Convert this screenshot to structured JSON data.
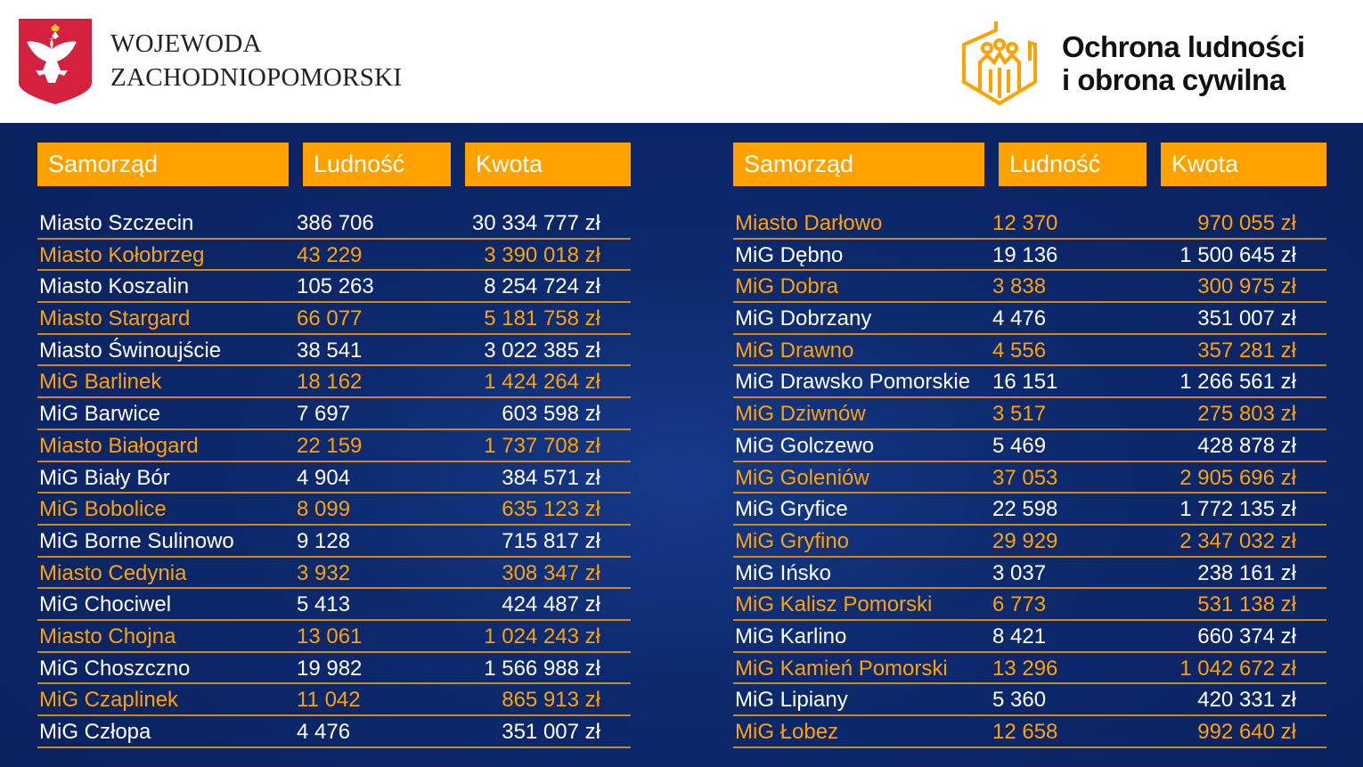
{
  "header": {
    "authority_line1": "WOJEWODA",
    "authority_line2": "ZACHODNIOPOMORSKI",
    "program_line1": "Ochrona ludności",
    "program_line2": "i obrona cywilna"
  },
  "colors": {
    "accent": "#ffa200",
    "background": "#0d2a6e",
    "text": "#ffffff"
  },
  "columns": [
    "Samorząd",
    "Ludność",
    "Kwota"
  ],
  "left_table": [
    [
      "Miasto Szczecin",
      "386 706",
      "30 334 777 zł"
    ],
    [
      "Miasto Kołobrzeg",
      "43 229",
      "3 390 018 zł"
    ],
    [
      "Miasto Koszalin",
      "105 263",
      "8 254 724 zł"
    ],
    [
      "Miasto Stargard",
      "66 077",
      "5 181 758 zł"
    ],
    [
      "Miasto Świnoujście",
      "38 541",
      "3 022 385 zł"
    ],
    [
      "MiG Barlinek",
      "18 162",
      "1 424 264 zł"
    ],
    [
      "MiG Barwice",
      "7 697",
      "603 598 zł"
    ],
    [
      "Miasto Białogard",
      "22 159",
      "1 737 708 zł"
    ],
    [
      "MiG Biały Bór",
      "4 904",
      "384 571 zł"
    ],
    [
      "MiG Bobolice",
      "8 099",
      "635 123 zł"
    ],
    [
      "MiG Borne Sulinowo",
      "9 128",
      "715 817 zł"
    ],
    [
      "Miasto Cedynia",
      "3 932",
      "308 347 zł"
    ],
    [
      "MiG Chociwel",
      "5 413",
      "424 487 zł"
    ],
    [
      "Miasto Chojna",
      "13 061",
      "1 024 243 zł"
    ],
    [
      "MiG Choszczno",
      "19 982",
      "1 566 988 zł"
    ],
    [
      "MiG Czaplinek",
      "11 042",
      "865 913 zł"
    ],
    [
      "MiG Człopa",
      "4 476",
      "351 007 zł"
    ]
  ],
  "right_table": [
    [
      "Miasto Darłowo",
      "12 370",
      "970 055 zł"
    ],
    [
      "MiG Dębno",
      "19 136",
      "1 500 645 zł"
    ],
    [
      "MiG Dobra",
      "3 838",
      "300 975 zł"
    ],
    [
      "MiG Dobrzany",
      "4 476",
      "351 007 zł"
    ],
    [
      "MiG Drawno",
      "4 556",
      "357 281 zł"
    ],
    [
      "MiG Drawsko Pomorskie",
      "16 151",
      "1 266 561 zł"
    ],
    [
      "MiG Dziwnów",
      "3 517",
      "275 803 zł"
    ],
    [
      "MiG Golczewo",
      "5 469",
      "428 878 zł"
    ],
    [
      "MiG Goleniów",
      "37 053",
      "2 905 696 zł"
    ],
    [
      "MiG Gryfice",
      "22 598",
      "1 772 135 zł"
    ],
    [
      "MiG Gryfino",
      "29 929",
      "2 347 032 zł"
    ],
    [
      "MiG Ińsko",
      "3 037",
      "238 161 zł"
    ],
    [
      "MiG Kalisz Pomorski",
      "6 773",
      "531 138 zł"
    ],
    [
      "MiG Karlino",
      "8 421",
      "660 374 zł"
    ],
    [
      "MiG Kamień Pomorski",
      "13 296",
      "1 042 672 zł"
    ],
    [
      "MiG Lipiany",
      "5 360",
      "420 331 zł"
    ],
    [
      "MiG Łobez",
      "12 658",
      "992 640 zł"
    ]
  ]
}
